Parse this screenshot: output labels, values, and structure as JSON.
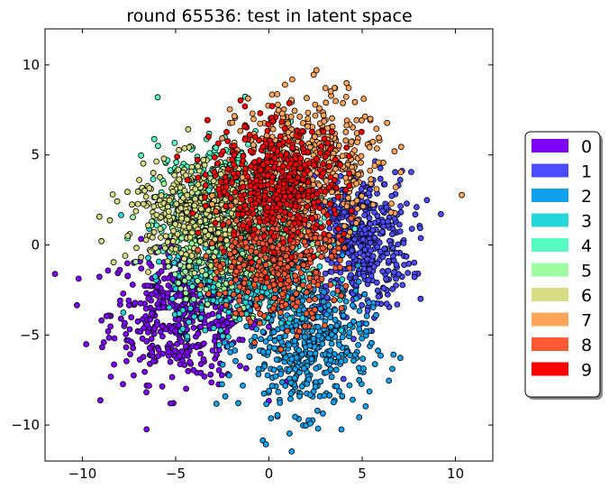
{
  "chart_data": {
    "type": "scatter",
    "title": "round 65536: test in latent space",
    "xlabel": "",
    "ylabel": "",
    "xlim": [
      -12,
      12
    ],
    "ylim": [
      -12,
      12
    ],
    "xticks": [
      -10,
      -5,
      0,
      5,
      10
    ],
    "yticks": [
      -10,
      -5,
      0,
      5,
      10
    ],
    "grid": false,
    "legend_position": "right",
    "series": [
      {
        "name": "0",
        "color": "#7f00ff",
        "center": [
          -4.5,
          -3.8
        ],
        "spread": [
          2.0,
          1.9
        ],
        "approx_points": 500
      },
      {
        "name": "1",
        "color": "#4b4bff",
        "center": [
          4.8,
          0.2
        ],
        "spread": [
          1.4,
          1.9
        ],
        "approx_points": 500
      },
      {
        "name": "2",
        "color": "#12a1ec",
        "center": [
          2.0,
          -5.5
        ],
        "spread": [
          1.7,
          1.9
        ],
        "approx_points": 500
      },
      {
        "name": "3",
        "color": "#25d7db",
        "center": [
          -1.5,
          -1.5
        ],
        "spread": [
          1.9,
          1.5
        ],
        "approx_points": 450
      },
      {
        "name": "4",
        "color": "#57fcc2",
        "center": [
          -2.0,
          2.5
        ],
        "spread": [
          2.0,
          1.6
        ],
        "approx_points": 450
      },
      {
        "name": "5",
        "color": "#9ffca0",
        "center": [
          -2.0,
          0.3
        ],
        "spread": [
          1.8,
          1.4
        ],
        "approx_points": 400
      },
      {
        "name": "6",
        "color": "#d5dc81",
        "center": [
          -3.5,
          1.8
        ],
        "spread": [
          2.0,
          1.4
        ],
        "approx_points": 450
      },
      {
        "name": "7",
        "color": "#ffa55a",
        "center": [
          2.2,
          4.5
        ],
        "spread": [
          1.9,
          1.9
        ],
        "approx_points": 500
      },
      {
        "name": "8",
        "color": "#ff5a33",
        "center": [
          0.3,
          -0.8
        ],
        "spread": [
          1.7,
          1.7
        ],
        "approx_points": 400
      },
      {
        "name": "9",
        "color": "#ff0000",
        "center": [
          0.5,
          3.5
        ],
        "spread": [
          1.8,
          1.6
        ],
        "approx_points": 450
      }
    ]
  }
}
